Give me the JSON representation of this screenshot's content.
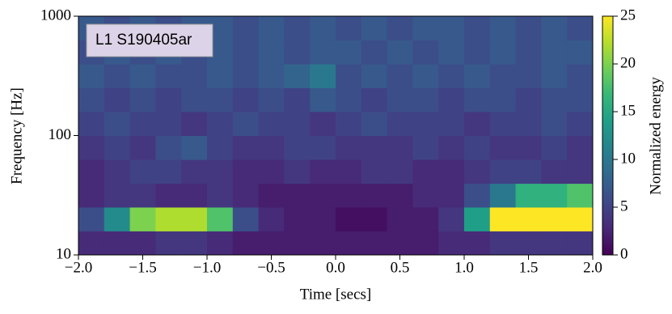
{
  "chart_data": {
    "type": "heatmap",
    "annotation": "L1 S190405ar",
    "x_label": "Time [secs]",
    "y_label": "Frequency [Hz]",
    "colorbar_label": "Normalized energy",
    "colormap": "viridis",
    "y_scale": "log",
    "x": [
      -1.9,
      -1.7,
      -1.5,
      -1.3,
      -1.1,
      -0.9,
      -0.7,
      -0.5,
      -0.3,
      -0.1,
      0.1,
      0.3,
      0.5,
      0.7,
      0.9,
      1.1,
      1.3,
      1.5,
      1.7,
      1.9
    ],
    "y": [
      12.6,
      20,
      31.6,
      50,
      79.4,
      126,
      200,
      316,
      501,
      794
    ],
    "z": [
      [
        3,
        3,
        3,
        4,
        4,
        3,
        2,
        2,
        2,
        2,
        2,
        2,
        2,
        2,
        3,
        3,
        4,
        4,
        4,
        4
      ],
      [
        6,
        12,
        20,
        22,
        22,
        18,
        6,
        3,
        2,
        2,
        1,
        1,
        2,
        2,
        4,
        14,
        25,
        25,
        25,
        25
      ],
      [
        3,
        4,
        4,
        3,
        3,
        4,
        3,
        2,
        2,
        2,
        2,
        2,
        2,
        3,
        3,
        6,
        10,
        16,
        16,
        18
      ],
      [
        3,
        4,
        5,
        5,
        4,
        4,
        3,
        3,
        4,
        3,
        3,
        4,
        4,
        3,
        3,
        4,
        5,
        5,
        4,
        4
      ],
      [
        4,
        5,
        4,
        6,
        7,
        5,
        4,
        4,
        5,
        5,
        4,
        4,
        4,
        5,
        4,
        5,
        4,
        4,
        5,
        4
      ],
      [
        5,
        6,
        5,
        5,
        4,
        5,
        6,
        5,
        5,
        4,
        5,
        6,
        5,
        5,
        5,
        4,
        5,
        5,
        6,
        5
      ],
      [
        6,
        5,
        6,
        5,
        6,
        6,
        5,
        6,
        5,
        7,
        6,
        5,
        6,
        6,
        5,
        6,
        6,
        5,
        6,
        6
      ],
      [
        7,
        6,
        7,
        6,
        6,
        7,
        6,
        7,
        8,
        10,
        6,
        7,
        6,
        7,
        6,
        7,
        6,
        6,
        7,
        6
      ],
      [
        6,
        7,
        6,
        7,
        6,
        7,
        6,
        7,
        6,
        7,
        7,
        6,
        7,
        6,
        7,
        6,
        7,
        6,
        7,
        7
      ],
      [
        7,
        6,
        7,
        6,
        7,
        7,
        6,
        7,
        6,
        7,
        6,
        7,
        6,
        7,
        7,
        6,
        7,
        6,
        7,
        6
      ]
    ],
    "xlim": [
      -2,
      2
    ],
    "xticks": [
      {
        "value": -2,
        "label": "−2.0"
      },
      {
        "value": -1.5,
        "label": "−1.5"
      },
      {
        "value": -1,
        "label": "−1.0"
      },
      {
        "value": -0.5,
        "label": "−0.5"
      },
      {
        "value": 0,
        "label": "0.0"
      },
      {
        "value": 0.5,
        "label": "0.5"
      },
      {
        "value": 1,
        "label": "1.0"
      },
      {
        "value": 1.5,
        "label": "1.5"
      },
      {
        "value": 2,
        "label": "2.0"
      }
    ],
    "ylim": [
      10,
      1000
    ],
    "yticks": [
      10,
      100,
      1000
    ],
    "clim": [
      0,
      25
    ],
    "cticks": [
      0,
      5,
      10,
      15,
      20,
      25
    ]
  }
}
